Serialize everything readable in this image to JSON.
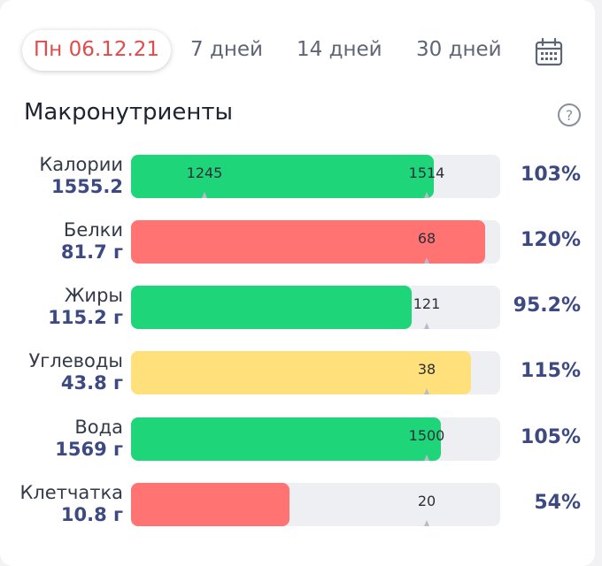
{
  "tabs": [
    {
      "label": "Пн 06.12.21",
      "active": true
    },
    {
      "label": "7 дней",
      "active": false
    },
    {
      "label": "14 дней",
      "active": false
    },
    {
      "label": "30 дней",
      "active": false
    }
  ],
  "calendar_icon": "calendar-icon",
  "section": {
    "title": "Макронутриенты",
    "help_icon": "question-circle-icon"
  },
  "colors": {
    "green": "#1ed679",
    "red": "#ff7373",
    "yellow": "#ffe07a",
    "track": "#eeeff2",
    "value": "#3d4a82",
    "active_tab": "#e14b4b"
  },
  "macros": [
    {
      "name": "Калории",
      "amount": "1555.2",
      "percent": "103%",
      "fill_fraction": 0.82,
      "color": "green",
      "markers": [
        {
          "value": "1245",
          "at": 0.2
        },
        {
          "value": "1514",
          "at": 0.8
        }
      ]
    },
    {
      "name": "Белки",
      "amount": "81.7 г",
      "percent": "120%",
      "fill_fraction": 0.96,
      "color": "red",
      "markers": [
        {
          "value": "68",
          "at": 0.8
        }
      ]
    },
    {
      "name": "Жиры",
      "amount": "115.2 г",
      "percent": "95.2%",
      "fill_fraction": 0.76,
      "color": "green",
      "markers": [
        {
          "value": "121",
          "at": 0.8
        }
      ]
    },
    {
      "name": "Углеводы",
      "amount": "43.8 г",
      "percent": "115%",
      "fill_fraction": 0.92,
      "color": "yellow",
      "markers": [
        {
          "value": "38",
          "at": 0.8
        }
      ]
    },
    {
      "name": "Вода",
      "amount": "1569 г",
      "percent": "105%",
      "fill_fraction": 0.84,
      "color": "green",
      "markers": [
        {
          "value": "1500",
          "at": 0.8
        }
      ]
    },
    {
      "name": "Клетчатка",
      "amount": "10.8 г",
      "percent": "54%",
      "fill_fraction": 0.43,
      "color": "red",
      "markers": [
        {
          "value": "20",
          "at": 0.8
        }
      ]
    }
  ]
}
